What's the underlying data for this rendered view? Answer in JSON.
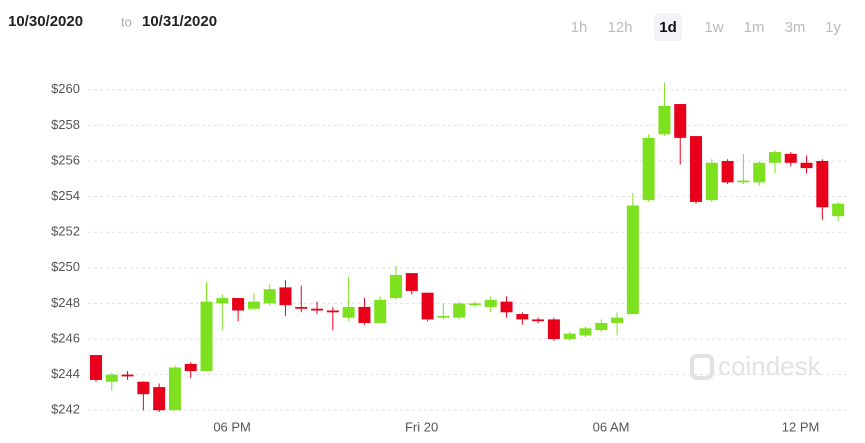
{
  "header": {
    "from": "10/30/2020",
    "to_word": "to",
    "to": "10/31/2020",
    "ranges": [
      "1h",
      "12h",
      "1d",
      "1w",
      "1m",
      "3m",
      "1y"
    ],
    "active_range": 2
  },
  "watermark": "coindesk",
  "chart_data": {
    "type": "candlestick",
    "categories": [
      null,
      null,
      null,
      null,
      null,
      null,
      null,
      null,
      null,
      "06 PM",
      null,
      null,
      null,
      null,
      null,
      null,
      null,
      null,
      null,
      null,
      null,
      "Fri 20",
      null,
      null,
      null,
      null,
      null,
      null,
      null,
      null,
      null,
      null,
      null,
      "06 AM",
      null,
      null,
      null,
      null,
      null,
      null,
      null,
      null,
      null,
      null,
      null,
      "12 PM",
      null,
      null
    ],
    "open": [
      245.1,
      243.6,
      244.0,
      243.6,
      243.3,
      242.0,
      244.6,
      244.2,
      248.0,
      248.3,
      247.7,
      248.0,
      248.9,
      247.8,
      247.7,
      247.6,
      247.2,
      247.8,
      246.9,
      248.3,
      249.7,
      248.6,
      247.2,
      247.2,
      247.9,
      247.8,
      248.1,
      247.4,
      247.1,
      247.1,
      246.0,
      246.2,
      246.5,
      246.9,
      247.4,
      253.8,
      257.5,
      259.2,
      257.4,
      253.8,
      256.0,
      254.8,
      254.8,
      255.9,
      256.4,
      255.9,
      256.0,
      252.9
    ],
    "high": [
      245.1,
      244.1,
      244.2,
      243.6,
      243.5,
      244.5,
      244.7,
      249.2,
      248.5,
      248.3,
      248.6,
      249.1,
      249.3,
      249.0,
      248.1,
      247.8,
      249.5,
      248.3,
      248.4,
      250.1,
      249.7,
      248.6,
      248.0,
      248.1,
      248.1,
      248.4,
      248.4,
      247.5,
      247.2,
      247.2,
      246.4,
      246.7,
      247.1,
      247.5,
      254.2,
      257.5,
      260.4,
      259.2,
      257.4,
      256.1,
      256.1,
      256.4,
      256.0,
      256.6,
      256.5,
      256.3,
      256.1,
      253.7
    ],
    "low": [
      243.6,
      243.1,
      243.7,
      242.0,
      241.9,
      242.0,
      243.8,
      244.2,
      246.5,
      247.0,
      247.6,
      247.9,
      247.3,
      247.5,
      247.4,
      246.5,
      247.0,
      246.8,
      246.9,
      248.2,
      248.5,
      247.0,
      247.1,
      247.1,
      247.8,
      247.5,
      247.2,
      246.8,
      246.9,
      245.9,
      245.9,
      246.1,
      246.4,
      246.2,
      247.4,
      253.7,
      257.4,
      255.8,
      253.6,
      253.7,
      254.7,
      254.7,
      254.6,
      255.3,
      255.7,
      255.3,
      252.7,
      252.6
    ],
    "close": [
      243.7,
      244.0,
      243.9,
      242.9,
      242.0,
      244.4,
      244.2,
      248.1,
      248.3,
      247.6,
      248.1,
      248.8,
      247.9,
      247.7,
      247.6,
      247.5,
      247.8,
      246.9,
      248.2,
      249.6,
      248.7,
      247.1,
      247.3,
      248.0,
      248.0,
      248.2,
      247.5,
      247.1,
      247.0,
      246.0,
      246.3,
      246.6,
      246.9,
      247.2,
      253.5,
      257.3,
      259.1,
      257.3,
      253.7,
      255.9,
      254.8,
      254.9,
      255.9,
      256.5,
      255.9,
      255.6,
      253.4,
      253.6
    ],
    "up_color": "#7ee11f",
    "down_color": "#e8001b",
    "ylim": [
      241,
      261
    ],
    "yticks": [
      {
        "value": 242,
        "label": "$242"
      },
      {
        "value": 244,
        "label": "$244"
      },
      {
        "value": 246,
        "label": "$246"
      },
      {
        "value": 248,
        "label": "$248"
      },
      {
        "value": 250,
        "label": "$250"
      },
      {
        "value": 252,
        "label": "$252"
      },
      {
        "value": 254,
        "label": "$254"
      },
      {
        "value": 256,
        "label": "$256"
      },
      {
        "value": 258,
        "label": "$258"
      },
      {
        "value": 260,
        "label": "$260"
      }
    ],
    "grid": true
  }
}
